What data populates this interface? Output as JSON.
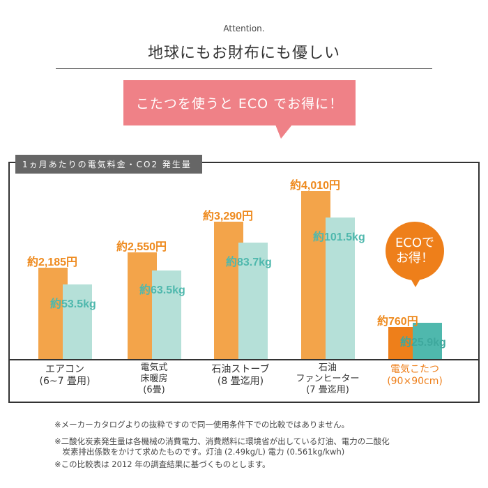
{
  "header": {
    "attention": "Attention.",
    "title": "地球にもお財布にも優しい",
    "banner": "こたつを使うと ECO でお得に！"
  },
  "chart_data": {
    "type": "bar",
    "title": "1ヵ月あたりの電気料金・CO2 発生量",
    "categories": [
      "エアコン\n(6~7 畳用)",
      "電気式\n床暖房\n(6畳)",
      "石油ストーブ\n(8 畳迄用)",
      "石油\nファンヒーター\n(7 畳迄用)",
      "電気こたつ\n(90×90cm)"
    ],
    "series": [
      {
        "values": [
          2185,
          2550,
          3290,
          4010,
          760
        ],
        "labels": [
          "約2,185円",
          "約2,550円",
          "約3,290円",
          "約4,010円",
          "約760円"
        ],
        "color": "#f3a44a",
        "highlight": "#ee7f1a"
      },
      {
        "values": [
          53.5,
          63.5,
          83.7,
          101.5,
          25.9
        ],
        "labels": [
          "約53.5kg",
          "約63.5kg",
          "約83.7kg",
          "約101.5kg",
          "約25.9kg"
        ],
        "color": "#b5e0d8",
        "highlight": "#4fb8ad"
      }
    ],
    "highlight_index": 4,
    "callout": "ECOで\nお得！"
  },
  "notes": [
    "※メーカーカタログよりの抜粋ですので同一使用条件下での比較ではありません。",
    "※二酸化炭素発生量は各機械の消費電力、消費燃料に環境省が出している灯油、電力の二酸化\n　炭素排出係数をかけて求めたものです。灯油 (2.49kg/L) 電力 (0.561kg/kwh)",
    "※この比較表は 2012 年の調査結果に基づくものとします。"
  ]
}
